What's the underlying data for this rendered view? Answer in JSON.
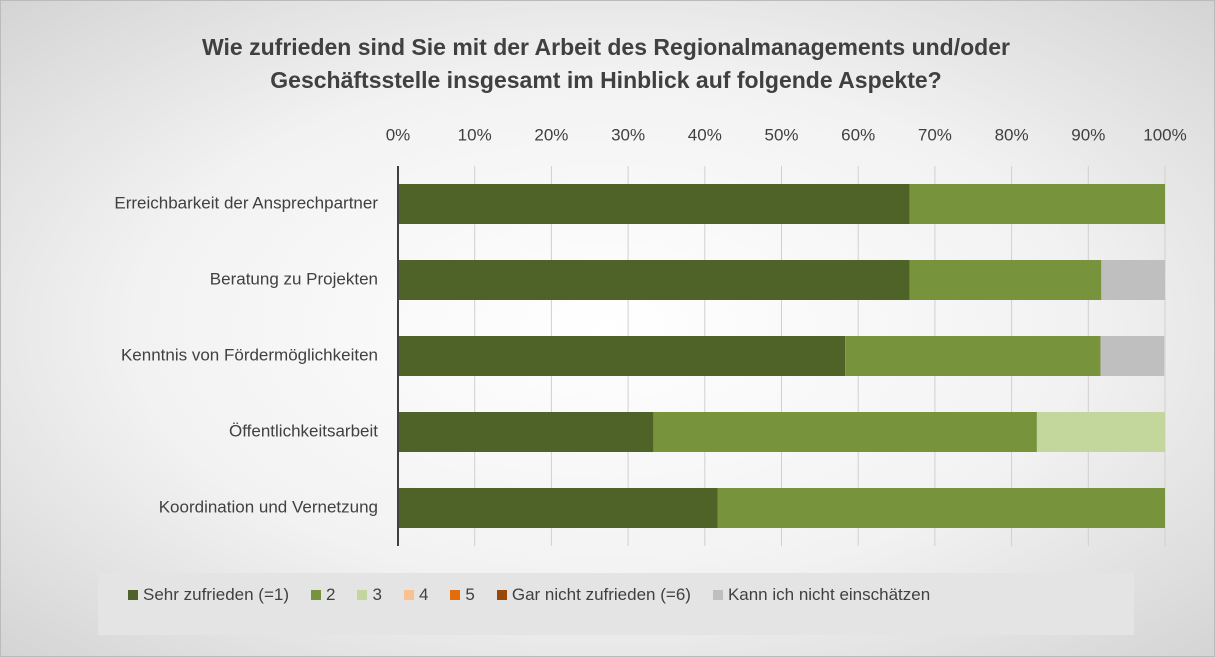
{
  "chart_data": {
    "type": "stacked-bar-horizontal",
    "title": "Wie zufrieden sind Sie mit der Arbeit des Regionalmanagements und/oder Geschäftsstelle insgesamt im Hinblick auf folgende Aspekte?",
    "categories": [
      "Erreichbarkeit der Ansprechpartner",
      "Beratung zu Projekten",
      "Kenntnis von Fördermöglichkeiten",
      "Öffentlichkeitsarbeit",
      "Koordination und Vernetzung"
    ],
    "series": [
      {
        "name": "Sehr zufrieden (=1)",
        "color": "#4f6228",
        "values": [
          66.7,
          66.7,
          58.3,
          33.3,
          41.7
        ]
      },
      {
        "name": "2",
        "color": "#77933c",
        "values": [
          33.3,
          25,
          33.3,
          50,
          58.3
        ]
      },
      {
        "name": "3",
        "color": "#c3d69b",
        "values": [
          0,
          0,
          0,
          16.7,
          0
        ]
      },
      {
        "name": "4",
        "color": "#fac090",
        "values": [
          0,
          0,
          0,
          0,
          0
        ]
      },
      {
        "name": "5",
        "color": "#e46c0a",
        "values": [
          0,
          0,
          0,
          0,
          0
        ]
      },
      {
        "name": "Gar nicht zufrieden (=6)",
        "color": "#984807",
        "values": [
          0,
          0,
          0,
          0,
          0
        ]
      },
      {
        "name": "Kann ich nicht einschätzen",
        "color": "#bfbfbf",
        "values": [
          0,
          8.3,
          8.3,
          0,
          0
        ]
      }
    ],
    "xlim": [
      0,
      100
    ],
    "xticks": [
      {
        "value": 0,
        "label": "0%"
      },
      {
        "value": 10,
        "label": "10%"
      },
      {
        "value": 20,
        "label": "20%"
      },
      {
        "value": 30,
        "label": "30%"
      },
      {
        "value": 40,
        "label": "40%"
      },
      {
        "value": 50,
        "label": "50%"
      },
      {
        "value": 60,
        "label": "60%"
      },
      {
        "value": 70,
        "label": "70%"
      },
      {
        "value": 80,
        "label": "80%"
      },
      {
        "value": 90,
        "label": "90%"
      },
      {
        "value": 100,
        "label": "100%"
      }
    ],
    "grid": true,
    "legend": "bottom"
  }
}
